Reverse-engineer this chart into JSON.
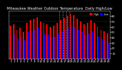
{
  "title": "Milwaukee Weather Outdoor Temperature  Daily High/Low",
  "title_fontsize": 3.8,
  "highs": [
    62,
    65,
    55,
    58,
    50,
    68,
    72,
    75,
    78,
    70,
    68,
    65,
    60,
    62,
    68,
    72,
    76,
    80,
    84,
    82,
    75,
    70,
    65,
    68,
    72,
    68,
    60,
    55,
    52,
    48
  ],
  "lows": [
    45,
    48,
    38,
    40,
    35,
    50,
    52,
    55,
    58,
    50,
    48,
    45,
    40,
    42,
    48,
    52,
    56,
    60,
    62,
    60,
    55,
    50,
    45,
    48,
    52,
    48,
    42,
    38,
    35,
    30
  ],
  "high_color": "#ff0000",
  "low_color": "#0000ff",
  "bg_color": "#000000",
  "plot_bg": "#000000",
  "text_color": "#ffffff",
  "ylim": [
    0,
    90
  ],
  "yticks": [
    10,
    20,
    30,
    40,
    50,
    60,
    70,
    80
  ],
  "ytick_labels": [
    "10",
    "20",
    "30",
    "40",
    "50",
    "60",
    "70",
    "80"
  ],
  "xlabel_fontsize": 2.8,
  "ylabel_fontsize": 2.8,
  "bar_width": 0.38,
  "legend_high": "High",
  "legend_low": "Low",
  "dashed_lines_at": [
    14.5,
    15.5,
    16.5,
    17.5
  ]
}
